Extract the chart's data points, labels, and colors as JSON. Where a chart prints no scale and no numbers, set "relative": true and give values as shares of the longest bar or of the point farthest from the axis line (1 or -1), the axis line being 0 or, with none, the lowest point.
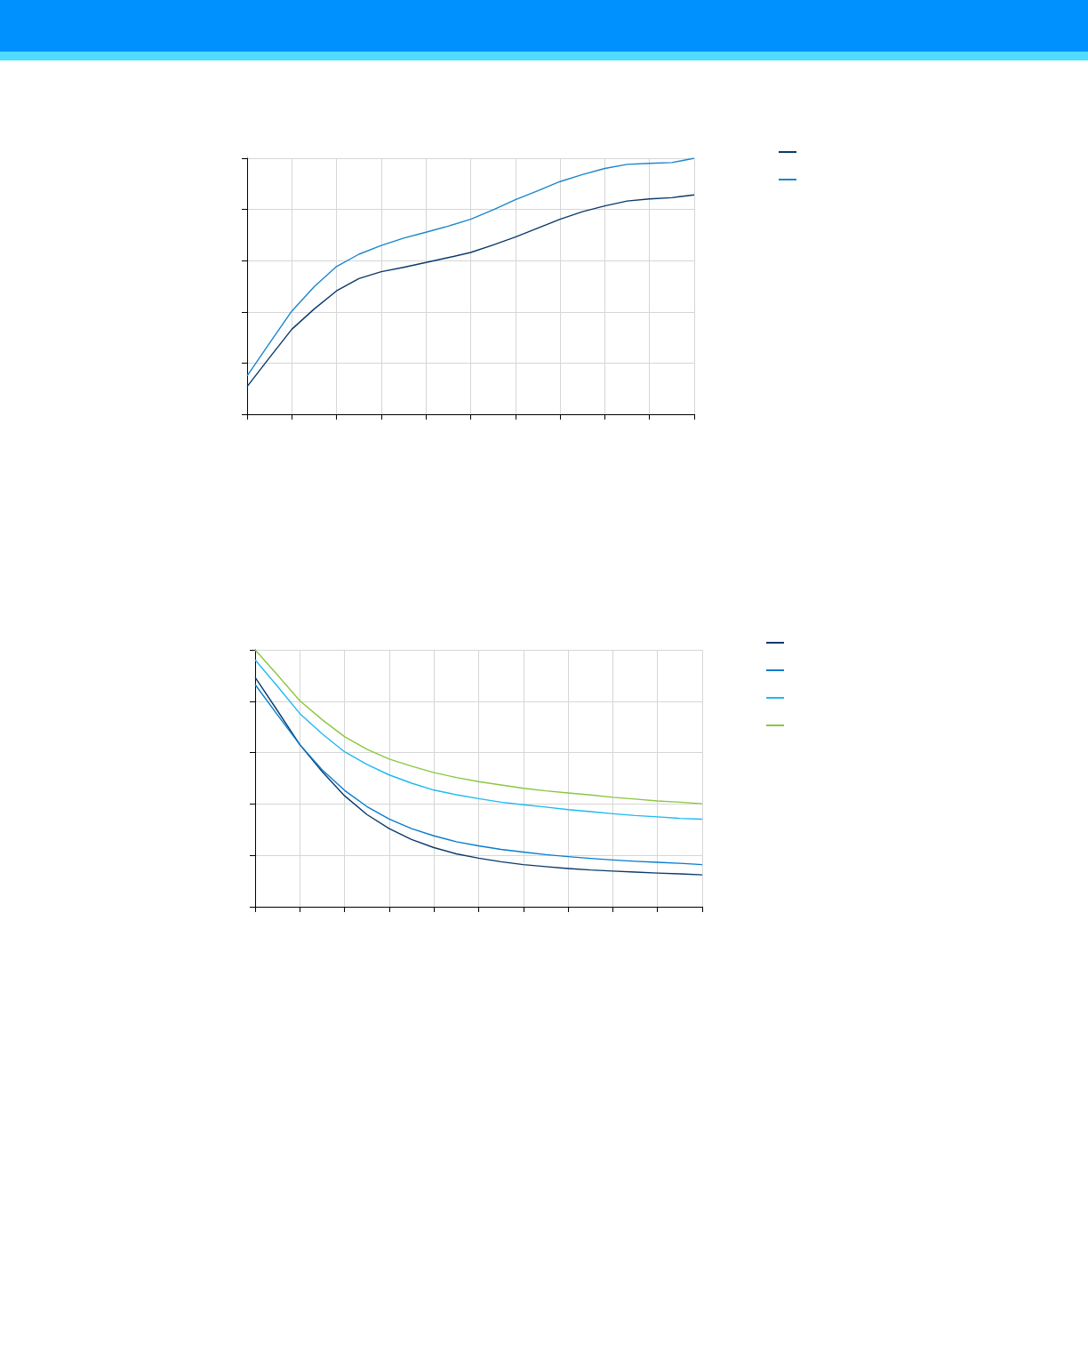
{
  "chart_data": [
    {
      "type": "line",
      "relative": true,
      "grid": true,
      "categories": [
        null,
        null,
        null,
        null,
        null,
        null,
        null,
        null,
        null,
        null,
        null,
        null,
        null,
        null,
        null,
        null,
        null,
        null,
        null,
        null,
        null
      ],
      "series": [
        {
          "color": "#0a3a6b",
          "values": [
            0.108,
            0.221,
            0.332,
            0.411,
            0.482,
            0.53,
            0.557,
            0.574,
            0.593,
            0.612,
            0.632,
            0.661,
            0.692,
            0.727,
            0.762,
            0.791,
            0.814,
            0.833,
            0.841,
            0.846,
            0.857
          ]
        },
        {
          "color": "#1a86cc",
          "values": [
            0.15,
            0.277,
            0.403,
            0.498,
            0.577,
            0.625,
            0.659,
            0.688,
            0.711,
            0.735,
            0.762,
            0.798,
            0.838,
            0.873,
            0.909,
            0.936,
            0.96,
            0.976,
            0.98,
            0.983,
            1.0
          ]
        }
      ]
    },
    {
      "type": "line",
      "relative": true,
      "grid": true,
      "categories": [
        null,
        null,
        null,
        null,
        null,
        null,
        null,
        null,
        null,
        null,
        null,
        null,
        null,
        null,
        null,
        null,
        null,
        null,
        null,
        null,
        null
      ],
      "series": [
        {
          "color": "#0a3a6b",
          "values": [
            0.893,
            0.763,
            0.631,
            0.526,
            0.432,
            0.359,
            0.304,
            0.262,
            0.23,
            0.206,
            0.189,
            0.175,
            0.164,
            0.156,
            0.149,
            0.143,
            0.139,
            0.135,
            0.131,
            0.128,
            0.124
          ]
        },
        {
          "color": "#0a7ccc",
          "values": [
            0.865,
            0.747,
            0.631,
            0.533,
            0.453,
            0.39,
            0.341,
            0.304,
            0.276,
            0.253,
            0.237,
            0.223,
            0.213,
            0.203,
            0.195,
            0.188,
            0.182,
            0.177,
            0.173,
            0.169,
            0.164
          ]
        },
        {
          "color": "#1ebaf0",
          "values": [
            0.961,
            0.858,
            0.752,
            0.673,
            0.603,
            0.554,
            0.513,
            0.481,
            0.454,
            0.436,
            0.421,
            0.407,
            0.397,
            0.388,
            0.378,
            0.37,
            0.362,
            0.355,
            0.35,
            0.344,
            0.341
          ]
        },
        {
          "color": "#8cc63f",
          "values": [
            1.0,
            0.902,
            0.802,
            0.728,
            0.662,
            0.613,
            0.575,
            0.547,
            0.522,
            0.503,
            0.487,
            0.474,
            0.461,
            0.451,
            0.443,
            0.435,
            0.426,
            0.419,
            0.412,
            0.407,
            0.401
          ]
        }
      ]
    }
  ]
}
